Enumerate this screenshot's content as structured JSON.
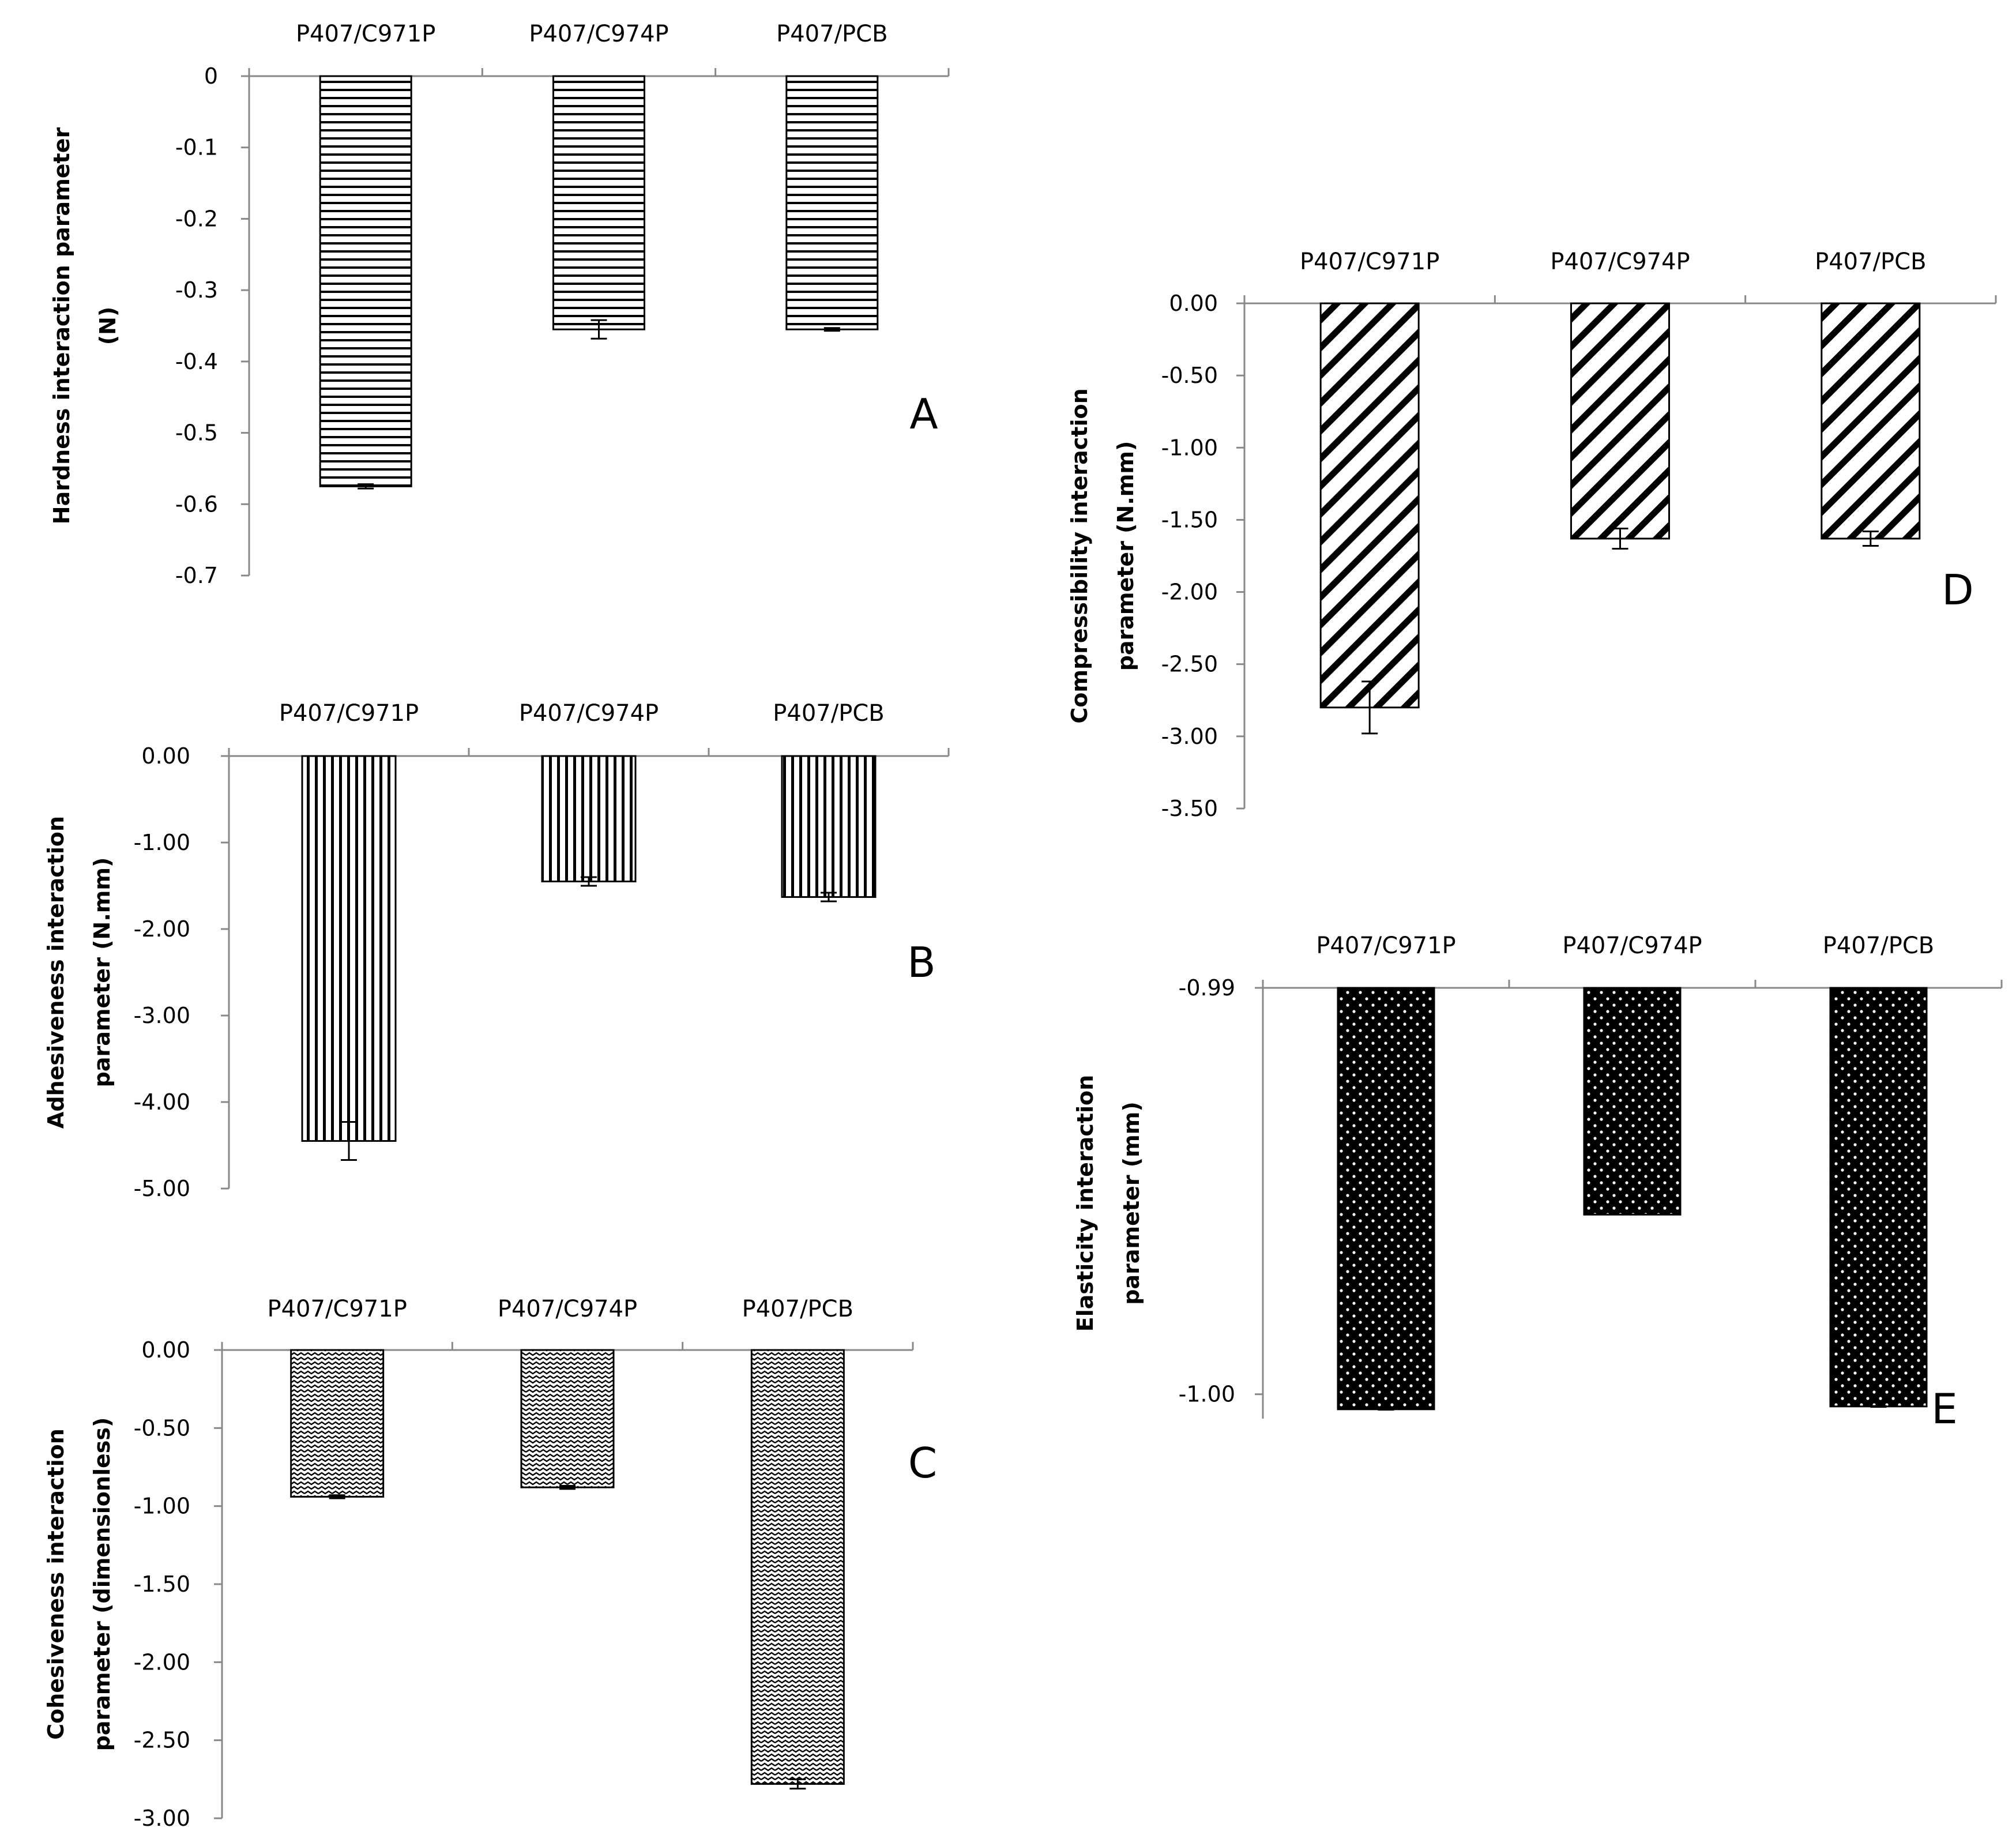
{
  "chart_data": [
    {
      "panel": "A",
      "type": "bar",
      "ylabel": [
        "Hardness interaction parameter",
        "(N)"
      ],
      "categories": [
        "P407/C971P",
        "P407/C974P",
        "P407/PCB"
      ],
      "values": [
        -0.575,
        -0.355,
        -0.355
      ],
      "errors": [
        0.003,
        0.013,
        0.002
      ],
      "ylim": [
        -0.7,
        0
      ],
      "ticks": [
        0,
        -0.1,
        -0.2,
        -0.3,
        -0.4,
        -0.5,
        -0.6,
        -0.7
      ],
      "tick_labels": [
        "0",
        "-0.1",
        "-0.2",
        "-0.3",
        "-0.4",
        "-0.5",
        "-0.6",
        "-0.7"
      ],
      "pattern": "horizontal-lines"
    },
    {
      "panel": "B",
      "type": "bar",
      "ylabel": [
        "Adhesiveness interaction",
        "parameter (N.mm)"
      ],
      "categories": [
        "P407/C971P",
        "P407/C974P",
        "P407/PCB"
      ],
      "values": [
        -4.45,
        -1.45,
        -1.63
      ],
      "errors": [
        0.22,
        0.05,
        0.05
      ],
      "ylim": [
        -5,
        0
      ],
      "ticks": [
        0,
        -1,
        -2,
        -3,
        -4,
        -5
      ],
      "tick_labels": [
        "0.00",
        "-1.00",
        "-2.00",
        "-3.00",
        "-4.00",
        "-5.00"
      ],
      "pattern": "vertical-lines"
    },
    {
      "panel": "C",
      "type": "bar",
      "ylabel": [
        "Cohesiveness interaction",
        "parameter (dimensionless)"
      ],
      "categories": [
        "P407/C971P",
        "P407/C974P",
        "P407/PCB"
      ],
      "values": [
        -0.94,
        -0.88,
        -2.78
      ],
      "errors": [
        0.01,
        0.01,
        0.03
      ],
      "ylim": [
        -3,
        0
      ],
      "ticks": [
        0,
        -0.5,
        -1,
        -1.5,
        -2,
        -2.5,
        -3
      ],
      "tick_labels": [
        "0.00",
        "-0.50",
        "-1.00",
        "-1.50",
        "-2.00",
        "-2.50",
        "-3.00"
      ],
      "pattern": "zigzag"
    },
    {
      "panel": "D",
      "type": "bar",
      "ylabel": [
        "Compressibility interaction",
        "parameter (N.mm)"
      ],
      "categories": [
        "P407/C971P",
        "P407/C974P",
        "P407/PCB"
      ],
      "values": [
        -2.8,
        -1.63,
        -1.63
      ],
      "errors": [
        0.18,
        0.07,
        0.05
      ],
      "ylim": [
        -3.5,
        0
      ],
      "ticks": [
        0,
        -0.5,
        -1,
        -1.5,
        -2,
        -2.5,
        -3,
        -3.5
      ],
      "tick_labels": [
        "0.00",
        "-0.50",
        "-1.00",
        "-1.50",
        "-2.00",
        "-2.50",
        "-3.00",
        "-3.50"
      ],
      "pattern": "diagonal-lines"
    },
    {
      "panel": "E",
      "type": "bar",
      "ylabel": [
        "Elasticity interaction",
        "parameter (mm)"
      ],
      "categories": [
        "P407/C971P",
        "P407/C974P",
        "P407/PCB"
      ],
      "values": [
        -1.00037,
        -0.99558,
        -1.0003
      ],
      "errors": [
        1e-05,
        0.0,
        1e-05
      ],
      "ylim": [
        -1.0006,
        -0.99
      ],
      "ticks": [
        -0.99,
        -1.0
      ],
      "tick_labels": [
        "-0.99",
        "-1.00"
      ],
      "pattern": "dots"
    }
  ]
}
